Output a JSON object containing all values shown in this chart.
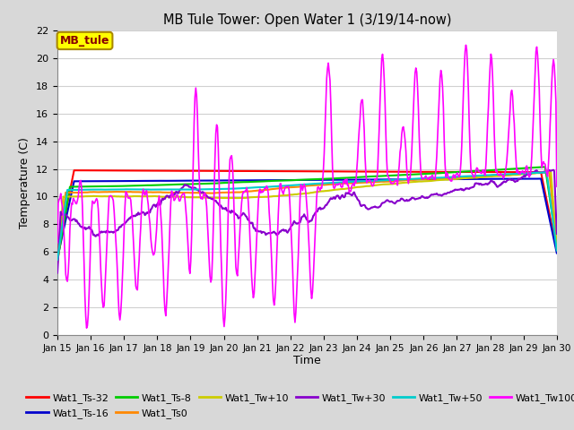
{
  "title": "MB Tule Tower: Open Water 1 (3/19/14-now)",
  "xlabel": "Time",
  "ylabel": "Temperature (C)",
  "ylim": [
    0,
    22
  ],
  "yticks": [
    0,
    2,
    4,
    6,
    8,
    10,
    12,
    14,
    16,
    18,
    20,
    22
  ],
  "xtick_labels": [
    "Jan 15",
    "Jan 16",
    "Jan 17",
    "Jan 18",
    "Jan 19",
    "Jan 20",
    "Jan 21",
    "Jan 22",
    "Jan 23",
    "Jan 24",
    "Jan 25",
    "Jan 26",
    "Jan 27",
    "Jan 28",
    "Jan 29",
    "Jan 30"
  ],
  "fig_bg_color": "#d8d8d8",
  "plot_bg_color": "#ffffff",
  "grid_color": "#d0d0d0",
  "legend_box_text": "MB_tule",
  "series_order": [
    "Wat1_Ts-32",
    "Wat1_Ts-16",
    "Wat1_Ts-8",
    "Wat1_Ts0",
    "Wat1_Tw+10",
    "Wat1_Tw+30",
    "Wat1_Tw+50",
    "Wat1_Tw100"
  ],
  "series": {
    "Wat1_Ts-32": {
      "color": "#ff0000",
      "lw": 1.5
    },
    "Wat1_Ts-16": {
      "color": "#0000cc",
      "lw": 1.5
    },
    "Wat1_Ts-8": {
      "color": "#00cc00",
      "lw": 1.5
    },
    "Wat1_Ts0": {
      "color": "#ff8800",
      "lw": 1.5
    },
    "Wat1_Tw+10": {
      "color": "#cccc00",
      "lw": 1.5
    },
    "Wat1_Tw+30": {
      "color": "#8800cc",
      "lw": 1.5
    },
    "Wat1_Tw+50": {
      "color": "#00cccc",
      "lw": 1.5
    },
    "Wat1_Tw100": {
      "color": "#ff00ff",
      "lw": 1.2
    }
  }
}
